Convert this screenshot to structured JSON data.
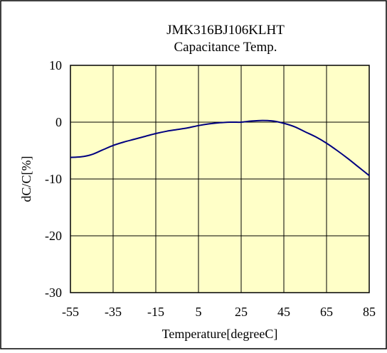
{
  "chart_data": {
    "type": "line",
    "title": "JMK316BJ106KLHT",
    "subtitle": "Capacitance Temp.",
    "xlabel": "Temperature[degreeC]",
    "ylabel": "dC/C[%]",
    "xlim": [
      -55,
      85
    ],
    "ylim": [
      -30,
      10
    ],
    "x_ticks": [
      "-55",
      "-35",
      "-15",
      "5",
      "25",
      "45",
      "65",
      "85"
    ],
    "y_ticks": [
      "10",
      "0",
      "-10",
      "-20",
      "-30"
    ],
    "x_tick_values": [
      -55,
      -35,
      -15,
      5,
      25,
      45,
      65,
      85
    ],
    "y_tick_values": [
      10,
      0,
      -10,
      -20,
      -30
    ],
    "grid": true,
    "series": [
      {
        "x": [
          -55,
          -50,
          -45,
          -40,
          -35,
          -30,
          -25,
          -20,
          -15,
          -10,
          -5,
          0,
          5,
          10,
          15,
          20,
          22,
          25,
          30,
          35,
          40,
          45,
          50,
          55,
          60,
          65,
          70,
          75,
          80,
          85
        ],
        "y": [
          -6.2,
          -6.1,
          -5.7,
          -4.9,
          -4.1,
          -3.5,
          -3.0,
          -2.5,
          -2.0,
          -1.6,
          -1.3,
          -1.0,
          -0.6,
          -0.3,
          -0.1,
          0.0,
          0.0,
          0.0,
          0.2,
          0.3,
          0.2,
          -0.2,
          -0.8,
          -1.7,
          -2.6,
          -3.7,
          -5.0,
          -6.4,
          -7.9,
          -9.4
        ]
      }
    ],
    "colors": {
      "plot_background": "#FFFFC8",
      "line": "#000080",
      "grid": "#000000",
      "frame": "#000000"
    }
  }
}
